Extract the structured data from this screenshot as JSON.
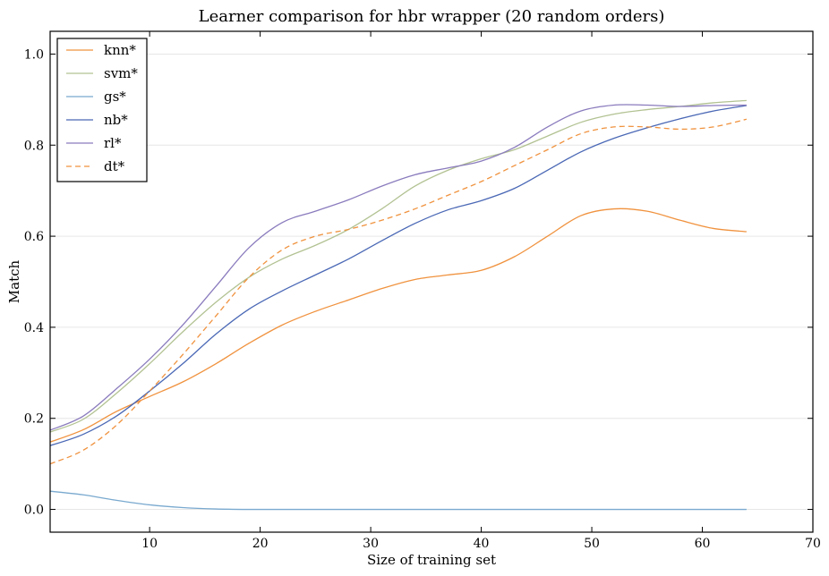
{
  "chart_data": {
    "type": "line",
    "title": "Learner comparison for hbr wrapper (20 random orders)",
    "xlabel": "Size of training set",
    "ylabel": "Match",
    "xlim": [
      1,
      70
    ],
    "ylim": [
      -0.05,
      1.05
    ],
    "xticks": [
      10,
      20,
      30,
      40,
      50,
      60,
      70
    ],
    "yticks": [
      0.0,
      0.2,
      0.4,
      0.6,
      0.8,
      1.0
    ],
    "ytick_labels": [
      "0.0",
      "0.2",
      "0.4",
      "0.6",
      "0.8",
      "1.0"
    ],
    "grid": "horizontal",
    "legend_position": "upper-left",
    "x": [
      1,
      4,
      7,
      10,
      13,
      16,
      19,
      22,
      25,
      28,
      31,
      34,
      37,
      40,
      43,
      46,
      49,
      52,
      55,
      58,
      61,
      64
    ],
    "series": [
      {
        "name": "knn*",
        "color": "#f0923e",
        "dash": "solid",
        "values": [
          0.148,
          0.175,
          0.215,
          0.248,
          0.28,
          0.32,
          0.365,
          0.405,
          0.435,
          0.46,
          0.485,
          0.505,
          0.515,
          0.525,
          0.555,
          0.6,
          0.645,
          0.66,
          0.655,
          0.635,
          0.617,
          0.61
        ]
      },
      {
        "name": "svm*",
        "color": "#b2c292",
        "dash": "solid",
        "values": [
          0.17,
          0.198,
          0.255,
          0.32,
          0.39,
          0.455,
          0.51,
          0.55,
          0.58,
          0.615,
          0.66,
          0.71,
          0.745,
          0.77,
          0.79,
          0.82,
          0.85,
          0.868,
          0.878,
          0.885,
          0.893,
          0.898
        ]
      },
      {
        "name": "gs*",
        "color": "#79a9cf",
        "dash": "solid",
        "values": [
          0.04,
          0.032,
          0.02,
          0.01,
          0.004,
          0.001,
          0.0,
          0.0,
          0.0,
          0.0,
          0.0,
          0.0,
          0.0,
          0.0,
          0.0,
          0.0,
          0.0,
          0.0,
          0.0,
          0.0,
          0.0,
          0.0
        ]
      },
      {
        "name": "nb*",
        "color": "#4a68b5",
        "dash": "solid",
        "values": [
          0.14,
          0.165,
          0.205,
          0.26,
          0.32,
          0.385,
          0.44,
          0.48,
          0.515,
          0.55,
          0.59,
          0.628,
          0.658,
          0.678,
          0.705,
          0.745,
          0.785,
          0.815,
          0.838,
          0.858,
          0.875,
          0.887
        ]
      },
      {
        "name": "rl*",
        "color": "#8a7bbd",
        "dash": "solid",
        "values": [
          0.174,
          0.205,
          0.265,
          0.33,
          0.405,
          0.49,
          0.575,
          0.63,
          0.655,
          0.68,
          0.71,
          0.735,
          0.75,
          0.765,
          0.795,
          0.84,
          0.875,
          0.888,
          0.888,
          0.885,
          0.887,
          0.888
        ]
      },
      {
        "name": "dt*",
        "color": "#f0923e",
        "dash": "dashed",
        "values": [
          0.1,
          0.13,
          0.185,
          0.26,
          0.34,
          0.425,
          0.51,
          0.57,
          0.6,
          0.615,
          0.635,
          0.66,
          0.69,
          0.72,
          0.755,
          0.79,
          0.825,
          0.84,
          0.84,
          0.835,
          0.84,
          0.857
        ]
      }
    ]
  }
}
